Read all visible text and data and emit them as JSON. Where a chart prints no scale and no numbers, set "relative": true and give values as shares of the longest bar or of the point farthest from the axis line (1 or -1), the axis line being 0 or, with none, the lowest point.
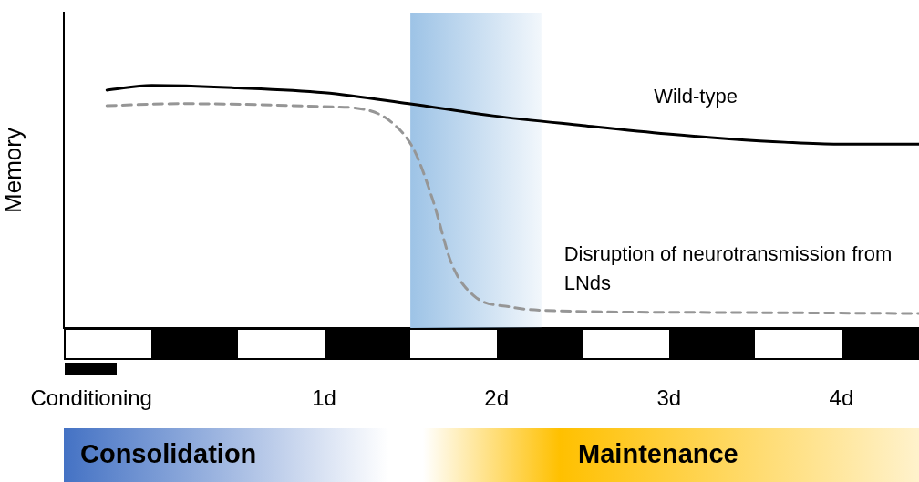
{
  "chart_data": {
    "type": "line",
    "relative": true,
    "ylabel": "Memory",
    "xlim": [
      -0.51,
      4.45
    ],
    "xticks": [
      {
        "value": -0.35,
        "label": "Conditioning"
      },
      {
        "value": 1,
        "label": "1d"
      },
      {
        "value": 2,
        "label": "2d"
      },
      {
        "value": 3,
        "label": "3d"
      },
      {
        "value": 4,
        "label": "4d"
      }
    ],
    "series": [
      {
        "name": "Wild-type",
        "color": "#000000",
        "line_style": "solid",
        "x": [
          -0.26,
          0.0,
          0.5,
          1,
          1.49,
          1.98,
          2.5,
          2.99,
          3.35,
          3.67,
          3.98,
          4.45
        ],
        "values": [
          0.981,
          1.0,
          0.99,
          0.97,
          0.925,
          0.875,
          0.835,
          0.8,
          0.78,
          0.766,
          0.758,
          0.758
        ]
      },
      {
        "name": "Disruption of neurotransmission from LNds",
        "color": "#969696",
        "line_style": "dashed",
        "x": [
          -0.26,
          0.175,
          1,
          1.23,
          1.39,
          1.52,
          1.63,
          1.74,
          1.87,
          2.08,
          2.29,
          3.35,
          4.45
        ],
        "values": [
          0.917,
          0.925,
          0.913,
          0.902,
          0.849,
          0.736,
          0.528,
          0.264,
          0.132,
          0.087,
          0.072,
          0.064,
          0.06
        ]
      }
    ],
    "bands": [
      {
        "axis": "x",
        "from": 1.5,
        "to": 2.26,
        "color": "#9dc3e6"
      }
    ],
    "grid": false,
    "legend": false,
    "annotations": [
      "Consolidation",
      "Maintenance"
    ]
  }
}
